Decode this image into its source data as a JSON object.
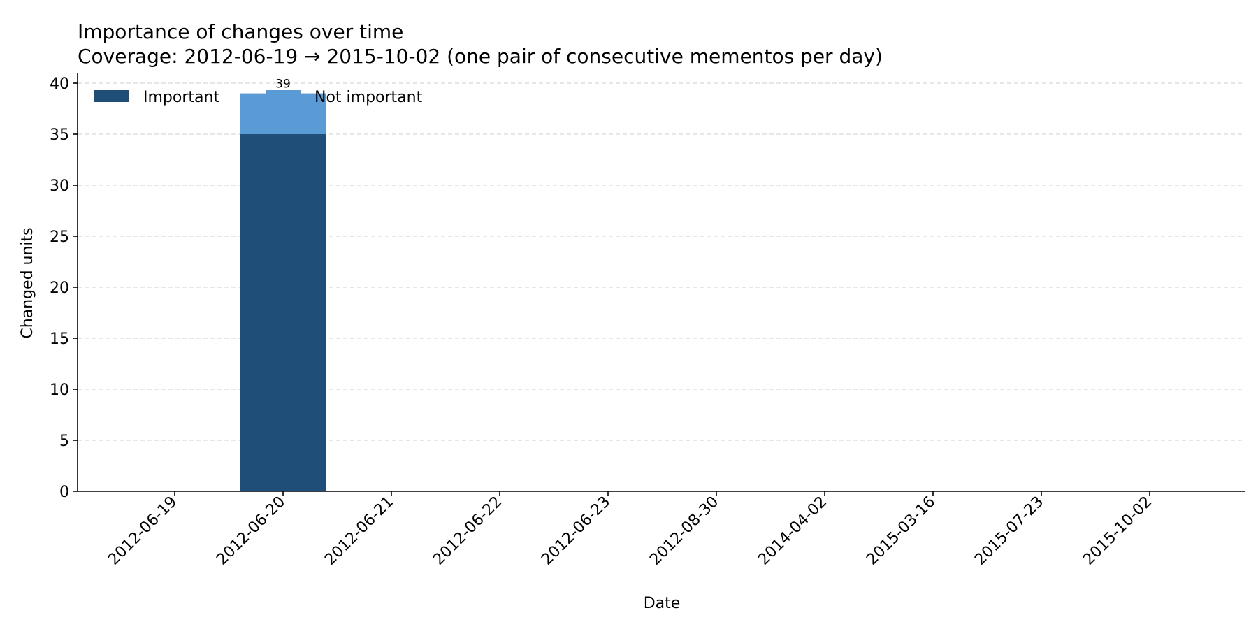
{
  "chart_data": {
    "type": "bar",
    "stacked": true,
    "title": "Importance of changes over time",
    "subtitle": "Coverage: 2012-06-19 → 2015-10-02 (one pair of consecutive mementos per day)",
    "xlabel": "Date",
    "ylabel": "Changed units",
    "ylim": [
      0,
      40
    ],
    "yticks": [
      0,
      5,
      10,
      15,
      20,
      25,
      30,
      35,
      40
    ],
    "grid": "y-dashed",
    "legend_position": "top-left",
    "categories": [
      "2012-06-19",
      "2012-06-20",
      "2012-06-21",
      "2012-06-22",
      "2012-06-23",
      "2012-08-30",
      "2014-04-02",
      "2015-03-16",
      "2015-07-23",
      "2015-10-02"
    ],
    "series": [
      {
        "name": "Important",
        "color": "#1f4e79",
        "values": [
          0,
          35,
          0,
          0,
          0,
          0,
          0,
          0,
          0,
          0
        ]
      },
      {
        "name": "Not important",
        "color": "#5b9bd5",
        "values": [
          0,
          4,
          0,
          0,
          0,
          0,
          0,
          0,
          0,
          0
        ]
      }
    ],
    "totals": [
      null,
      39,
      null,
      null,
      null,
      null,
      null,
      null,
      null,
      null
    ]
  }
}
